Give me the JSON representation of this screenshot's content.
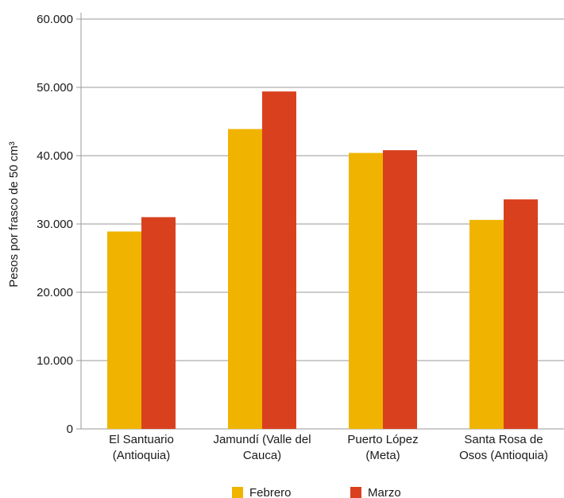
{
  "chart_data": {
    "type": "bar",
    "title": "",
    "xlabel": "",
    "ylabel": "Pesos por frasco de 50 cm³",
    "ylim": [
      0,
      60000
    ],
    "yticks": [
      0,
      10000,
      20000,
      30000,
      40000,
      50000,
      60000
    ],
    "ytick_labels": [
      "0",
      "10.000",
      "20.000",
      "30.000",
      "40.000",
      "50.000",
      "60.000"
    ],
    "grid": true,
    "legend": "bottom",
    "categories": [
      [
        "El Santuario",
        "(Antioquia)"
      ],
      [
        "Jamundí (Valle del",
        "Cauca)"
      ],
      [
        "Puerto López",
        "(Meta)"
      ],
      [
        "Santa Rosa de",
        "Osos (Antioquia)"
      ]
    ],
    "series": [
      {
        "name": "Febrero",
        "color": "#f0b400",
        "values": [
          28900,
          43900,
          40400,
          30600
        ]
      },
      {
        "name": "Marzo",
        "color": "#d9411e",
        "values": [
          31000,
          49400,
          40800,
          33600
        ]
      }
    ]
  }
}
